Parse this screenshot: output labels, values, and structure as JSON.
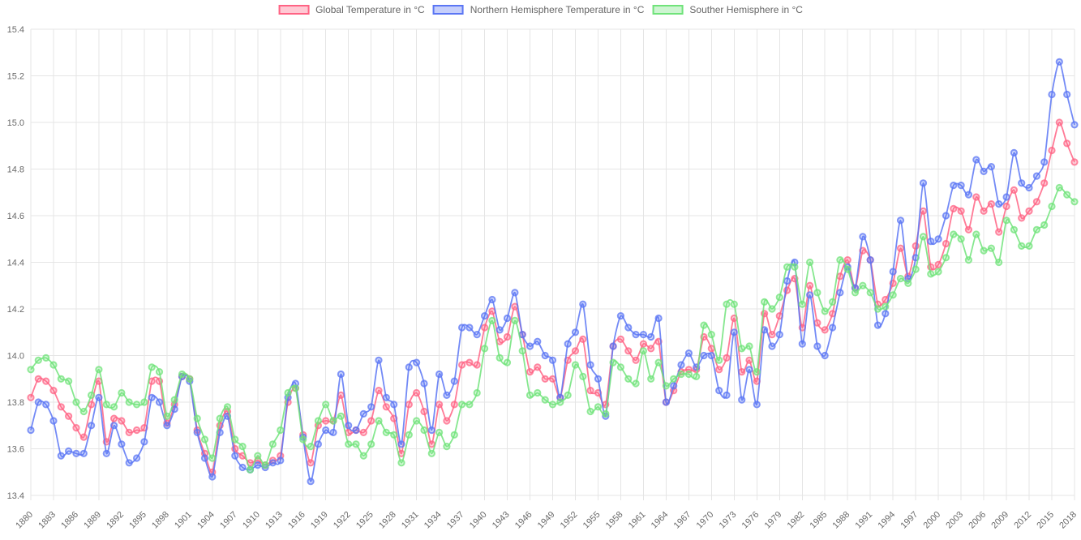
{
  "axes": {
    "y_tick_labels": [
      "13.4",
      "13.6",
      "13.8",
      "14.0",
      "14.2",
      "14.4",
      "14.6",
      "14.8",
      "15.0",
      "15.2",
      "15.4"
    ],
    "y_min": 13.4,
    "y_max": 15.4,
    "y_step": 0.2,
    "x_tick_step_years": 3,
    "grid_color": "#e5e5e5",
    "tick_text_color": "#696969"
  },
  "legend": {
    "position": "top",
    "items": [
      {
        "label": "Global Temperature in °C",
        "color": "#ff6384",
        "fill": "rgba(255,99,132,0.35)"
      },
      {
        "label": "Northern Hemisphere Temperature in °C",
        "color": "#5b76f4",
        "fill": "rgba(91,118,244,0.35)"
      },
      {
        "label": "Souther Hemisphere in °C",
        "color": "#70e37a",
        "fill": "rgba(112,227,122,0.35)"
      }
    ]
  },
  "chart_data": {
    "type": "line",
    "title": "",
    "xlabel": "",
    "ylabel": "",
    "ylim": [
      13.4,
      15.4
    ],
    "grid": true,
    "legend_position": "top",
    "marker": "circle",
    "x": [
      1880,
      1881,
      1882,
      1883,
      1884,
      1885,
      1886,
      1887,
      1888,
      1889,
      1890,
      1891,
      1892,
      1893,
      1894,
      1895,
      1896,
      1897,
      1898,
      1899,
      1900,
      1901,
      1902,
      1903,
      1904,
      1905,
      1906,
      1907,
      1908,
      1909,
      1910,
      1911,
      1912,
      1913,
      1914,
      1915,
      1916,
      1917,
      1918,
      1919,
      1920,
      1921,
      1922,
      1923,
      1924,
      1925,
      1926,
      1927,
      1928,
      1929,
      1930,
      1931,
      1932,
      1933,
      1934,
      1935,
      1936,
      1937,
      1938,
      1939,
      1940,
      1941,
      1942,
      1943,
      1944,
      1945,
      1946,
      1947,
      1948,
      1949,
      1950,
      1951,
      1952,
      1953,
      1954,
      1955,
      1956,
      1957,
      1958,
      1959,
      1960,
      1961,
      1962,
      1963,
      1964,
      1965,
      1966,
      1967,
      1968,
      1969,
      1970,
      1971,
      1972,
      1973,
      1974,
      1975,
      1976,
      1977,
      1978,
      1979,
      1980,
      1981,
      1982,
      1983,
      1984,
      1985,
      1986,
      1987,
      1988,
      1989,
      1990,
      1991,
      1992,
      1993,
      1994,
      1995,
      1996,
      1997,
      1998,
      1999,
      2000,
      2001,
      2002,
      2003,
      2004,
      2005,
      2006,
      2007,
      2008,
      2009,
      2010,
      2011,
      2012,
      2013,
      2014,
      2015,
      2016,
      2017,
      2018
    ],
    "series": [
      {
        "name": "Global Temperature in °C",
        "color": "#ff6384",
        "values": [
          13.82,
          13.9,
          13.89,
          13.85,
          13.78,
          13.74,
          13.69,
          13.65,
          13.79,
          13.89,
          13.63,
          13.73,
          13.72,
          13.67,
          13.68,
          13.69,
          13.89,
          13.89,
          13.71,
          13.79,
          13.91,
          13.9,
          13.68,
          13.58,
          13.5,
          13.7,
          13.76,
          13.6,
          13.57,
          13.54,
          13.55,
          13.53,
          13.55,
          13.57,
          13.8,
          13.86,
          13.66,
          13.54,
          13.7,
          13.72,
          13.72,
          13.83,
          13.67,
          13.68,
          13.67,
          13.72,
          13.85,
          13.78,
          13.73,
          13.58,
          13.79,
          13.84,
          13.76,
          13.62,
          13.79,
          13.72,
          13.79,
          13.96,
          13.97,
          13.96,
          14.12,
          14.19,
          14.06,
          14.08,
          14.21,
          14.09,
          13.93,
          13.95,
          13.9,
          13.9,
          13.82,
          13.98,
          14.02,
          14.07,
          13.85,
          13.84,
          13.79,
          14.04,
          14.07,
          14.02,
          13.98,
          14.05,
          14.03,
          14.06,
          13.8,
          13.85,
          13.93,
          13.94,
          13.94,
          14.08,
          14.03,
          13.94,
          13.99,
          14.16,
          13.93,
          13.98,
          13.89,
          14.18,
          14.09,
          14.17,
          14.28,
          14.33,
          14.12,
          14.3,
          14.14,
          14.11,
          14.18,
          14.34,
          14.41,
          14.29,
          14.45,
          14.41,
          14.22,
          14.24,
          14.31,
          14.46,
          14.34,
          14.47,
          14.62,
          14.38,
          14.39,
          14.48,
          14.63,
          14.62,
          14.54,
          14.68,
          14.62,
          14.65,
          14.53,
          14.64,
          14.71,
          14.59,
          14.62,
          14.66,
          14.74,
          14.88,
          15.0,
          14.91,
          14.83
        ]
      },
      {
        "name": "Northern Hemisphere Temperature in °C",
        "color": "#5b76f4",
        "values": [
          13.68,
          13.8,
          13.79,
          13.72,
          13.57,
          13.59,
          13.58,
          13.58,
          13.7,
          13.82,
          13.58,
          13.7,
          13.62,
          13.54,
          13.56,
          13.63,
          13.82,
          13.8,
          13.7,
          13.77,
          13.91,
          13.89,
          13.67,
          13.56,
          13.48,
          13.67,
          13.74,
          13.57,
          13.52,
          13.51,
          13.53,
          13.52,
          13.54,
          13.55,
          13.82,
          13.88,
          13.65,
          13.46,
          13.62,
          13.68,
          13.67,
          13.92,
          13.7,
          13.68,
          13.75,
          13.78,
          13.98,
          13.82,
          13.79,
          13.62,
          13.95,
          13.97,
          13.88,
          13.68,
          13.92,
          13.83,
          13.89,
          14.12,
          14.12,
          14.09,
          14.17,
          14.24,
          14.11,
          14.16,
          14.27,
          14.09,
          14.04,
          14.06,
          14.0,
          13.98,
          13.82,
          14.05,
          14.1,
          14.22,
          13.96,
          13.9,
          13.74,
          14.04,
          14.17,
          14.12,
          14.09,
          14.09,
          14.08,
          14.16,
          13.8,
          13.87,
          13.96,
          14.01,
          13.95,
          14.0,
          14.0,
          13.85,
          13.83,
          14.1,
          13.81,
          13.94,
          13.79,
          14.11,
          14.04,
          14.09,
          14.32,
          14.4,
          14.05,
          14.26,
          14.04,
          14.0,
          14.12,
          14.27,
          14.38,
          14.29,
          14.51,
          14.41,
          14.13,
          14.18,
          14.36,
          14.58,
          14.33,
          14.42,
          14.74,
          14.49,
          14.5,
          14.6,
          14.73,
          14.73,
          14.69,
          14.84,
          14.79,
          14.81,
          14.65,
          14.68,
          14.87,
          14.74,
          14.72,
          14.77,
          14.83,
          15.12,
          15.26,
          15.12,
          14.99
        ]
      },
      {
        "name": "Souther Hemisphere in °C",
        "color": "#70e37a",
        "values": [
          13.94,
          13.98,
          13.99,
          13.96,
          13.9,
          13.89,
          13.8,
          13.76,
          13.83,
          13.94,
          13.79,
          13.78,
          13.84,
          13.8,
          13.79,
          13.8,
          13.95,
          13.93,
          13.74,
          13.81,
          13.92,
          13.9,
          13.73,
          13.64,
          13.56,
          13.73,
          13.78,
          13.64,
          13.61,
          13.51,
          13.57,
          13.53,
          13.62,
          13.68,
          13.84,
          13.86,
          13.64,
          13.61,
          13.72,
          13.79,
          13.72,
          13.74,
          13.62,
          13.62,
          13.57,
          13.62,
          13.72,
          13.67,
          13.66,
          13.54,
          13.66,
          13.72,
          13.68,
          13.58,
          13.67,
          13.61,
          13.66,
          13.79,
          13.79,
          13.84,
          14.03,
          14.15,
          13.99,
          13.97,
          14.15,
          14.02,
          13.83,
          13.84,
          13.81,
          13.79,
          13.8,
          13.83,
          13.96,
          13.91,
          13.76,
          13.78,
          13.75,
          13.97,
          13.95,
          13.9,
          13.88,
          14.02,
          13.9,
          13.97,
          13.87,
          13.9,
          13.92,
          13.92,
          13.91,
          14.13,
          14.09,
          13.98,
          14.22,
          14.22,
          14.03,
          14.04,
          13.93,
          14.23,
          14.2,
          14.25,
          14.38,
          14.38,
          14.22,
          14.4,
          14.27,
          14.19,
          14.23,
          14.41,
          14.37,
          14.27,
          14.3,
          14.27,
          14.2,
          14.21,
          14.26,
          14.33,
          14.31,
          14.37,
          14.51,
          14.35,
          14.36,
          14.42,
          14.52,
          14.5,
          14.41,
          14.52,
          14.45,
          14.46,
          14.4,
          14.58,
          14.54,
          14.47,
          14.47,
          14.54,
          14.56,
          14.64,
          14.72,
          14.69,
          14.66
        ]
      }
    ]
  }
}
